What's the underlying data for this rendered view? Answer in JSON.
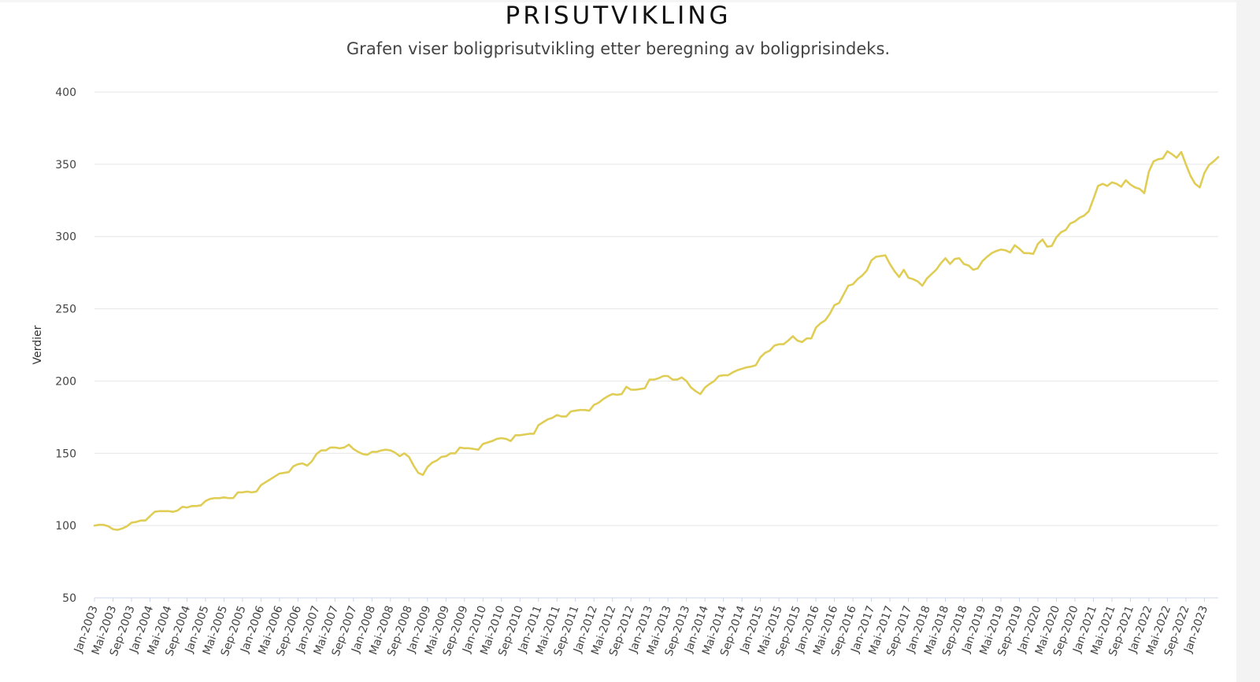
{
  "chart_data": {
    "type": "line",
    "title": "PRISUTVIKLING",
    "subtitle": "Grafen viser boligprisutvikling etter beregning av boligprisindeks.",
    "ylabel": "Verdier",
    "xlabel": "",
    "ylim": [
      50,
      400
    ],
    "yticks": [
      50,
      100,
      150,
      200,
      250,
      300,
      350,
      400
    ],
    "grid": true,
    "line_color": "#e0cd55",
    "x_start": "Jan-2003",
    "x_end": "Apr-2023",
    "x_tick_labels": [
      "Jan-2003",
      "Mai-2003",
      "Sep-2003",
      "Jan-2004",
      "Mai-2004",
      "Sep-2004",
      "Jan-2005",
      "Mai-2005",
      "Sep-2005",
      "Jan-2006",
      "Mai-2006",
      "Sep-2006",
      "Jan-2007",
      "Mai-2007",
      "Sep-2007",
      "Jan-2008",
      "Mai-2008",
      "Sep-2008",
      "Jan-2009",
      "Mai-2009",
      "Sep-2009",
      "Jan-2010",
      "Mai-2010",
      "Sep-2010",
      "Jan-2011",
      "Mai-2011",
      "Sep-2011",
      "Jan-2012",
      "Mai-2012",
      "Sep-2012",
      "Jan-2013",
      "Mai-2013",
      "Sep-2013",
      "Jan-2014",
      "Mai-2014",
      "Sep-2014",
      "Jan-2015",
      "Mai-2015",
      "Sep-2015",
      "Jan-2016",
      "Mai-2016",
      "Sep-2016",
      "Jan-2017",
      "Mai-2017",
      "Sep-2017",
      "Jan-2018",
      "Mai-2018",
      "Sep-2018",
      "Jan-2019",
      "Mai-2019",
      "Sep-2019",
      "Jan-2020",
      "Mai-2020",
      "Sep-2020",
      "Jan-2021",
      "Mai-2021",
      "Sep-2021",
      "Jan-2022",
      "Mai-2022",
      "Sep-2022",
      "Jan-2023"
    ],
    "series": [
      {
        "values": [
          100,
          100.5,
          100.5,
          99.5,
          97.5,
          97,
          98,
          99.5,
          102,
          102.5,
          103.5,
          103.5,
          106.5,
          109.5,
          110,
          110,
          110,
          109.5,
          110.5,
          113,
          112.5,
          113.5,
          113.5,
          114,
          117,
          118.5,
          119,
          119,
          119.5,
          119,
          119,
          123,
          123,
          123.5,
          123,
          123.5,
          128,
          130,
          132,
          134,
          136,
          136.5,
          137,
          141,
          142.5,
          143,
          141.5,
          144.5,
          149.5,
          152,
          152,
          154,
          154,
          153.5,
          154,
          156,
          153,
          151,
          149.5,
          149,
          151,
          151,
          152,
          152.5,
          152,
          150.5,
          148,
          150,
          147.5,
          141.5,
          136.5,
          135,
          140.5,
          143.5,
          145,
          147.5,
          148,
          150,
          150,
          154,
          153.5,
          153.5,
          153,
          152.5,
          156.5,
          157.5,
          158.5,
          160,
          160.5,
          160,
          158.5,
          162.5,
          162.5,
          163,
          163.5,
          163.5,
          169.5,
          171.5,
          173.5,
          174.5,
          176.5,
          175.5,
          175.5,
          179,
          179.5,
          180,
          180,
          179.5,
          183.5,
          185,
          187.5,
          189.5,
          191,
          190.5,
          191,
          196,
          194,
          194,
          194.5,
          195,
          201,
          201,
          202,
          203.5,
          203.5,
          201,
          201,
          202.5,
          200,
          195.5,
          193,
          191,
          195.5,
          198,
          200,
          203.5,
          204,
          204,
          206,
          207.5,
          208.5,
          209.5,
          210,
          211,
          216.5,
          219.5,
          221,
          224.5,
          225.5,
          225.5,
          228,
          231,
          228,
          227,
          229.5,
          229.5,
          237,
          240,
          242,
          246.5,
          252.5,
          254,
          260,
          266,
          267,
          270.5,
          273,
          276.5,
          283.5,
          286,
          286.5,
          287,
          281,
          276,
          272,
          277,
          271.5,
          270.5,
          269,
          266,
          271,
          274,
          277,
          281.5,
          285,
          281,
          284.5,
          285,
          281,
          280,
          277,
          278,
          283,
          286,
          288.5,
          290,
          291,
          290.5,
          289,
          294,
          291.5,
          288.5,
          288.5,
          288,
          295,
          298,
          293,
          293.5,
          299.5,
          303,
          304.5,
          309,
          310.5,
          313,
          314.5,
          317.5,
          326,
          335,
          336.5,
          335,
          337.5,
          336.5,
          334.5,
          339,
          336,
          334,
          333,
          330,
          345,
          352,
          353.5,
          354,
          359,
          357,
          354.5,
          358.5,
          350,
          342,
          336.5,
          334,
          344,
          349.5,
          352,
          355
        ]
      }
    ]
  }
}
